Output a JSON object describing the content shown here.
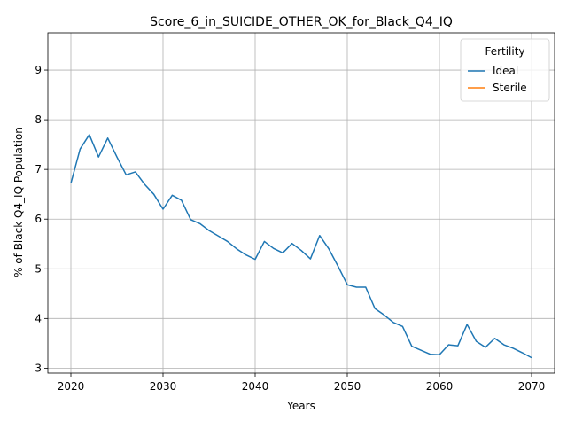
{
  "chart_data": {
    "type": "line",
    "title": "Score_6_in_SUICIDE_OTHER_OK_for_Black_Q4_IQ",
    "xlabel": "Years",
    "ylabel": "% of Black Q4_IQ Population",
    "xlim": [
      2017.5,
      2072.5
    ],
    "ylim": [
      2.9,
      9.75
    ],
    "xticks": [
      2020,
      2030,
      2040,
      2050,
      2060,
      2070
    ],
    "yticks": [
      3,
      4,
      5,
      6,
      7,
      8,
      9
    ],
    "grid": true,
    "legend": {
      "title": "Fertility",
      "placement": "top-right"
    },
    "series": [
      {
        "name": "Ideal",
        "color": "#1f77b4",
        "x": [
          2020,
          2021,
          2022,
          2023,
          2024,
          2025,
          2026,
          2027,
          2028,
          2029,
          2030,
          2031,
          2032,
          2033,
          2034,
          2035,
          2036,
          2037,
          2038,
          2039,
          2040,
          2041,
          2042,
          2043,
          2044,
          2045,
          2046,
          2047,
          2048,
          2049,
          2050,
          2051,
          2052,
          2053,
          2054,
          2055,
          2056,
          2057,
          2058,
          2059,
          2060,
          2061,
          2062,
          2063,
          2064,
          2065,
          2066,
          2067,
          2068,
          2069,
          2070
        ],
        "values": [
          6.72,
          7.41,
          7.7,
          7.25,
          7.63,
          7.25,
          6.89,
          6.95,
          6.7,
          6.5,
          6.2,
          6.48,
          6.38,
          5.99,
          5.91,
          5.77,
          5.66,
          5.55,
          5.4,
          5.28,
          5.19,
          5.55,
          5.41,
          5.32,
          5.51,
          5.37,
          5.2,
          5.67,
          5.4,
          5.05,
          4.68,
          4.63,
          4.63,
          4.2,
          4.07,
          3.92,
          3.84,
          3.44,
          3.36,
          3.28,
          3.27,
          3.47,
          3.45,
          3.88,
          3.54,
          3.42,
          3.6,
          3.47,
          3.4,
          3.31,
          3.21
        ]
      },
      {
        "name": "Sterile",
        "color": "#ff7f0e",
        "x": [],
        "values": []
      }
    ]
  }
}
